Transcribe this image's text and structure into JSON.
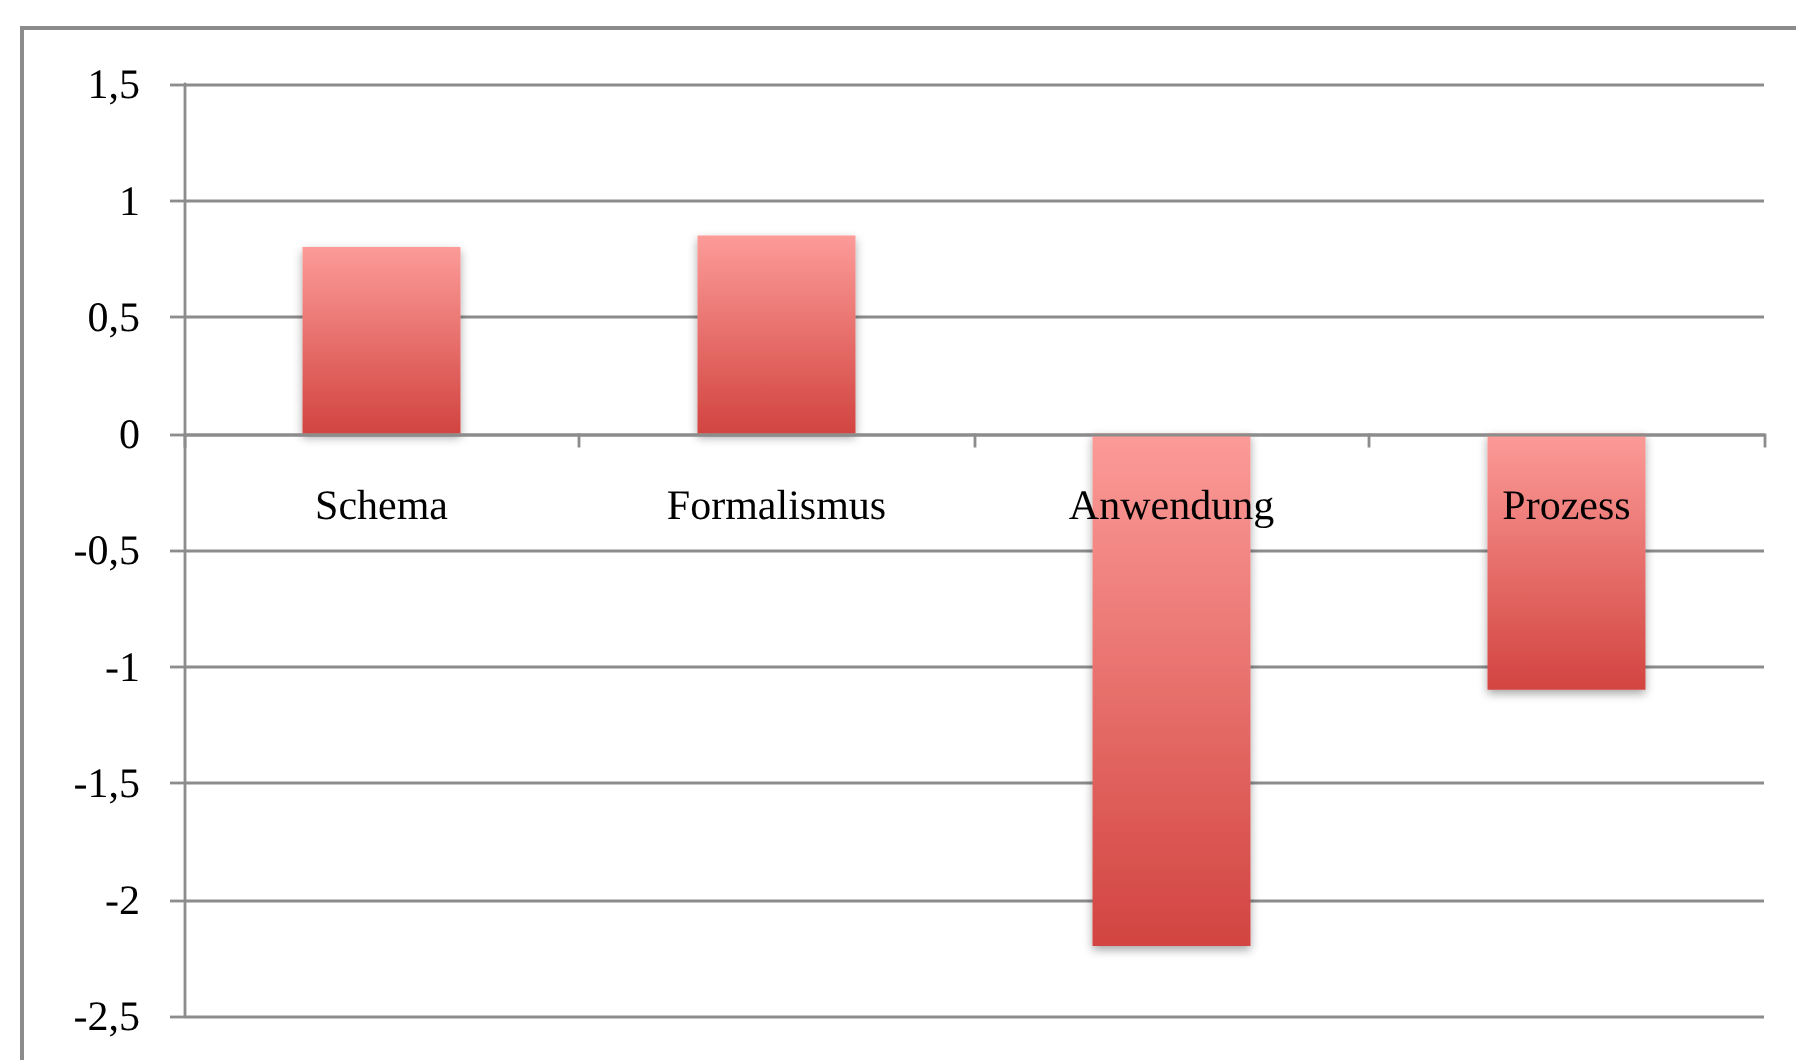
{
  "chart_data": {
    "type": "bar",
    "categories": [
      "Schema",
      "Formalismus",
      "Anwendung",
      "Prozess"
    ],
    "values": [
      0.8,
      0.85,
      -2.2,
      -1.1
    ],
    "color": "#d24440",
    "ylim": [
      -2.5,
      1.5
    ],
    "yticks": [
      {
        "value": -2.5,
        "label": "-2,5"
      },
      -2,
      {
        "value": -1.5,
        "label": "-1,5"
      },
      -1,
      {
        "value": -0.5,
        "label": "-0,5"
      },
      0,
      {
        "value": 0.5,
        "label": "0,5"
      },
      1,
      {
        "value": 1.5,
        "label": "1,5"
      }
    ],
    "grid": "y"
  }
}
